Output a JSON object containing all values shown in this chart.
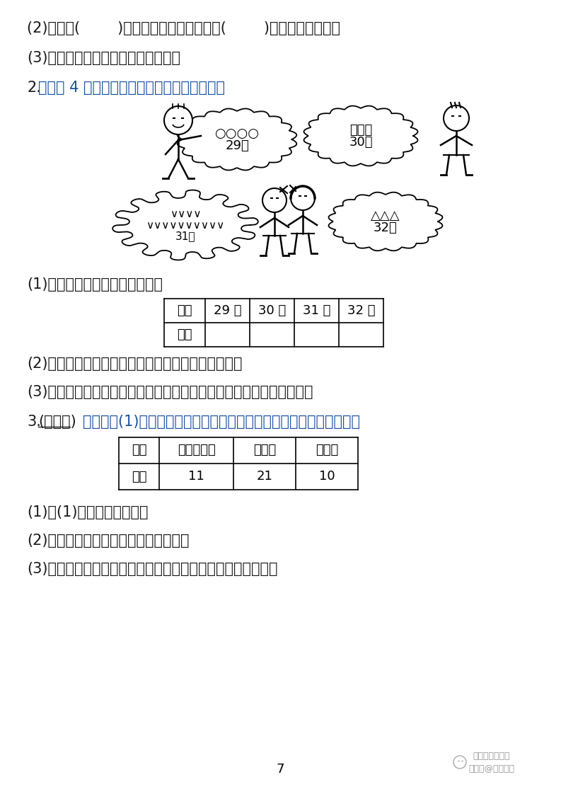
{
  "bg_color": "#ffffff",
  "text_color_black": "#1a1a1a",
  "text_color_orange": "#cc6600",
  "text_color_blue": "#1a50a0",
  "line1": "(2)身高在(        )厘米的人数最多，身高在(        )厘米的人数最少。",
  "line2": "(3)从统计表中你还能得到什么信息？",
  "q2_title_num": "2.",
  "q2_title_blue": "下面是 4 个同学调查的本班同学的鞋号情况。",
  "q2_sub1": "(1)把他们统计的结果填入表中。",
  "table1_headers": [
    "鞋码",
    "29 码",
    "30 码",
    "31 码",
    "32 码"
  ],
  "table1_row_label": "人数",
  "q2_sub2": "(2)穿什么鞋码的同学最多？穿什么鞋码的同学最少？",
  "q2_sub3": "(3)马上要进行体操比赛，如果让你去买运动鞋，你会怎么买？为什么？",
  "q3_title_num": "3.",
  "q3_title_bracket": "(变式题)",
  "q3_title_blue": "下面是二(1)班刘云同学调查的本班同学春游最喜欢去的地方统计表。",
  "table2_headers": [
    "地点",
    "上海动物园",
    "游乐园",
    "植物园"
  ],
  "table2_row_label": "人数",
  "table2_data": [
    "11",
    "21",
    "10"
  ],
  "q3_sub1": "(1)二(1)班一共有多少人？",
  "q3_sub2": "(2)你还能提出其他数学问题并解答吗？",
  "q3_sub3": "(3)如果让你组织这次春游活动，你有什么好的建议？为什么？",
  "page_num": "7",
  "watermark1": "中小学满分学苑",
  "watermark2": "搜狐号@财稻谷斗"
}
